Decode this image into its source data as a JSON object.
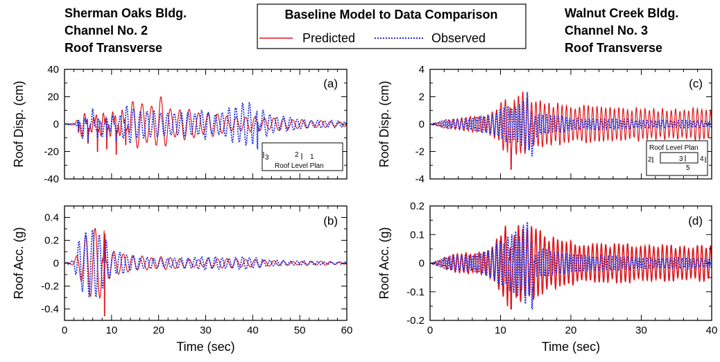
{
  "titles": {
    "left": [
      "Sherman Oaks Bldg.",
      "Channel No. 2",
      "Roof Transverse"
    ],
    "right": [
      "Walnut Creek Bldg.",
      "Channel No. 3",
      "Roof Transverse"
    ]
  },
  "legend": {
    "title": "Baseline Model to Data Comparison",
    "predicted": "Predicted",
    "observed": "Observed"
  },
  "colors": {
    "predicted": "#e0161b",
    "observed": "#1f2fe0",
    "axis": "#000000"
  },
  "insets": {
    "a": {
      "label": "Roof Level Plan",
      "marks": [
        "3",
        "2",
        "1"
      ]
    },
    "c": {
      "label": "Roof Level Plan",
      "marks": [
        "2",
        "3",
        "4",
        "5"
      ]
    }
  },
  "chart_data": [
    {
      "type": "line",
      "panel_label": "(a)",
      "ylabel": "Roof Disp. (cm)",
      "xlabel": "",
      "xlim": [
        0,
        60
      ],
      "ylim": [
        -40,
        40
      ],
      "xticks": [],
      "yticks": [
        -40,
        -20,
        0,
        20,
        40
      ],
      "series": [
        {
          "name": "Predicted",
          "values": [
            [
              0,
              0
            ],
            [
              2,
              1
            ],
            [
              3,
              -6
            ],
            [
              4,
              21
            ],
            [
              5,
              -14
            ],
            [
              6,
              17
            ],
            [
              7,
              -20
            ],
            [
              8,
              25
            ],
            [
              9,
              -18
            ],
            [
              10,
              27
            ],
            [
              11,
              -22
            ],
            [
              12,
              26
            ],
            [
              13,
              -15
            ],
            [
              14,
              18
            ],
            [
              16,
              20
            ],
            [
              18,
              16
            ],
            [
              20,
              22
            ],
            [
              22,
              14
            ],
            [
              24,
              10
            ],
            [
              26,
              12
            ],
            [
              28,
              10
            ],
            [
              30,
              8
            ],
            [
              32,
              10
            ],
            [
              34,
              8
            ],
            [
              36,
              6
            ],
            [
              38,
              6
            ],
            [
              40,
              7
            ],
            [
              42,
              6
            ],
            [
              44,
              5
            ],
            [
              46,
              5
            ],
            [
              48,
              4
            ],
            [
              50,
              4
            ],
            [
              52,
              3
            ],
            [
              55,
              3
            ],
            [
              58,
              2
            ]
          ]
        },
        {
          "name": "Observed",
          "values": [
            [
              0,
              0
            ],
            [
              2,
              1
            ],
            [
              3,
              -5
            ],
            [
              4,
              16
            ],
            [
              5,
              -13
            ],
            [
              6,
              12
            ],
            [
              7,
              -10
            ],
            [
              8,
              11
            ],
            [
              9,
              -9
            ],
            [
              10,
              14
            ],
            [
              11,
              -12
            ],
            [
              12,
              12
            ],
            [
              14,
              14
            ],
            [
              16,
              10
            ],
            [
              18,
              12
            ],
            [
              20,
              9
            ],
            [
              22,
              10
            ],
            [
              24,
              10
            ],
            [
              26,
              11
            ],
            [
              28,
              9
            ],
            [
              30,
              12
            ],
            [
              32,
              8
            ],
            [
              34,
              10
            ],
            [
              36,
              14
            ],
            [
              38,
              18
            ],
            [
              40,
              16
            ],
            [
              41,
              -18
            ],
            [
              42,
              12
            ],
            [
              44,
              8
            ],
            [
              46,
              6
            ],
            [
              48,
              5
            ],
            [
              50,
              4
            ],
            [
              53,
              3
            ],
            [
              56,
              3
            ],
            [
              59,
              2
            ]
          ]
        }
      ]
    },
    {
      "type": "line",
      "panel_label": "(b)",
      "ylabel": "Roof Acc. (g)",
      "xlabel": "Time (sec)",
      "xlim": [
        0,
        60
      ],
      "ylim": [
        -0.5,
        0.5
      ],
      "xticks": [
        0,
        10,
        20,
        30,
        40,
        50,
        60
      ],
      "yticks": [
        -0.4,
        -0.2,
        0,
        0.2,
        0.4
      ],
      "series": [
        {
          "name": "Predicted",
          "values": [
            [
              0,
              0
            ],
            [
              2,
              0.02
            ],
            [
              3,
              0.1
            ],
            [
              4,
              0.2
            ],
            [
              5,
              0.28
            ],
            [
              6,
              0.3
            ],
            [
              7,
              0.32
            ],
            [
              8,
              0.3
            ],
            [
              8.5,
              -0.46
            ],
            [
              9,
              0.2
            ],
            [
              10,
              0.12
            ],
            [
              12,
              0.1
            ],
            [
              14,
              0.09
            ],
            [
              16,
              0.07
            ],
            [
              18,
              0.06
            ],
            [
              20,
              0.06
            ],
            [
              24,
              0.05
            ],
            [
              28,
              0.04
            ],
            [
              32,
              0.04
            ],
            [
              36,
              0.05
            ],
            [
              40,
              0.04
            ],
            [
              44,
              0.03
            ],
            [
              48,
              0.02
            ],
            [
              52,
              0.02
            ],
            [
              56,
              0.02
            ],
            [
              59,
              0.01
            ]
          ]
        },
        {
          "name": "Observed",
          "values": [
            [
              0,
              0
            ],
            [
              2,
              0.03
            ],
            [
              3,
              0.22
            ],
            [
              4,
              0.3
            ],
            [
              5,
              0.35
            ],
            [
              6,
              0.34
            ],
            [
              7,
              0.35
            ],
            [
              8,
              0.3
            ],
            [
              9,
              0.2
            ],
            [
              10,
              0.1
            ],
            [
              12,
              0.1
            ],
            [
              14,
              0.08
            ],
            [
              16,
              0.06
            ],
            [
              18,
              0.05
            ],
            [
              20,
              0.05
            ],
            [
              24,
              0.05
            ],
            [
              28,
              0.06
            ],
            [
              30,
              0.07
            ],
            [
              34,
              0.05
            ],
            [
              38,
              0.06
            ],
            [
              40,
              0.05
            ],
            [
              44,
              0.03
            ],
            [
              48,
              0.02
            ],
            [
              52,
              0.02
            ],
            [
              56,
              0.01
            ],
            [
              59,
              0.01
            ]
          ]
        }
      ]
    },
    {
      "type": "line",
      "panel_label": "(c)",
      "ylabel": "Roof Disp. (cm)",
      "xlabel": "",
      "xlim": [
        0,
        40
      ],
      "ylim": [
        -4,
        4
      ],
      "xticks": [],
      "yticks": [
        -4,
        -2,
        0,
        2,
        4
      ],
      "series": [
        {
          "name": "Predicted",
          "values": [
            [
              0,
              0
            ],
            [
              2,
              0.3
            ],
            [
              4,
              0.5
            ],
            [
              6,
              0.6
            ],
            [
              8,
              0.7
            ],
            [
              9,
              1.1
            ],
            [
              10,
              1.6
            ],
            [
              11,
              2.7
            ],
            [
              11.5,
              -3.3
            ],
            [
              12,
              2.5
            ],
            [
              13,
              2.7
            ],
            [
              14,
              2.0
            ],
            [
              15,
              1.9
            ],
            [
              16,
              1.7
            ],
            [
              18,
              1.6
            ],
            [
              20,
              1.5
            ],
            [
              22,
              1.4
            ],
            [
              24,
              1.3
            ],
            [
              26,
              1.3
            ],
            [
              28,
              1.2
            ],
            [
              30,
              1.3
            ],
            [
              32,
              1.2
            ],
            [
              34,
              1.2
            ],
            [
              36,
              1.2
            ],
            [
              38,
              1.2
            ],
            [
              40,
              1.2
            ]
          ]
        },
        {
          "name": "Observed",
          "values": [
            [
              0,
              0
            ],
            [
              2,
              0.3
            ],
            [
              4,
              0.4
            ],
            [
              6,
              0.5
            ],
            [
              8,
              0.7
            ],
            [
              10,
              1.2
            ],
            [
              12,
              1.6
            ],
            [
              13,
              1.8
            ],
            [
              14,
              2.9
            ],
            [
              14.5,
              -2.3
            ],
            [
              15,
              1.0
            ],
            [
              16,
              0.8
            ],
            [
              18,
              0.6
            ],
            [
              20,
              0.5
            ],
            [
              22,
              0.4
            ],
            [
              24,
              0.4
            ],
            [
              26,
              0.4
            ],
            [
              28,
              0.4
            ],
            [
              30,
              0.3
            ],
            [
              32,
              0.3
            ],
            [
              34,
              0.3
            ],
            [
              36,
              0.3
            ],
            [
              38,
              0.3
            ],
            [
              40,
              0.2
            ]
          ]
        }
      ]
    },
    {
      "type": "line",
      "panel_label": "(d)",
      "ylabel": "Roof Acc. (g)",
      "xlabel": "Time (sec)",
      "xlim": [
        0,
        40
      ],
      "ylim": [
        -0.2,
        0.2
      ],
      "xticks": [
        0,
        10,
        20,
        30,
        40
      ],
      "yticks": [
        -0.2,
        -0.1,
        0,
        0.1,
        0.2
      ],
      "series": [
        {
          "name": "Predicted",
          "values": [
            [
              0,
              0
            ],
            [
              2,
              0.02
            ],
            [
              4,
              0.035
            ],
            [
              6,
              0.04
            ],
            [
              8,
              0.05
            ],
            [
              9,
              0.08
            ],
            [
              10,
              0.11
            ],
            [
              11,
              0.19
            ],
            [
              11.5,
              -0.16
            ],
            [
              12,
              0.15
            ],
            [
              13,
              0.16
            ],
            [
              14,
              0.14
            ],
            [
              15,
              0.13
            ],
            [
              16,
              0.11
            ],
            [
              18,
              0.09
            ],
            [
              20,
              0.08
            ],
            [
              22,
              0.075
            ],
            [
              24,
              0.07
            ],
            [
              26,
              0.07
            ],
            [
              28,
              0.07
            ],
            [
              30,
              0.07
            ],
            [
              32,
              0.065
            ],
            [
              34,
              0.065
            ],
            [
              36,
              0.065
            ],
            [
              38,
              0.065
            ],
            [
              40,
              0.065
            ]
          ]
        },
        {
          "name": "Observed",
          "values": [
            [
              0,
              0
            ],
            [
              2,
              0.02
            ],
            [
              4,
              0.03
            ],
            [
              6,
              0.035
            ],
            [
              8,
              0.045
            ],
            [
              10,
              0.08
            ],
            [
              12,
              0.11
            ],
            [
              13,
              0.13
            ],
            [
              14,
              0.16
            ],
            [
              14.5,
              -0.16
            ],
            [
              15,
              0.06
            ],
            [
              16,
              0.05
            ],
            [
              18,
              0.04
            ],
            [
              20,
              0.035
            ],
            [
              22,
              0.03
            ],
            [
              24,
              0.03
            ],
            [
              26,
              0.025
            ],
            [
              28,
              0.025
            ],
            [
              30,
              0.02
            ],
            [
              32,
              0.02
            ],
            [
              34,
              0.02
            ],
            [
              36,
              0.02
            ],
            [
              38,
              0.02
            ],
            [
              40,
              0.015
            ]
          ]
        }
      ]
    }
  ]
}
